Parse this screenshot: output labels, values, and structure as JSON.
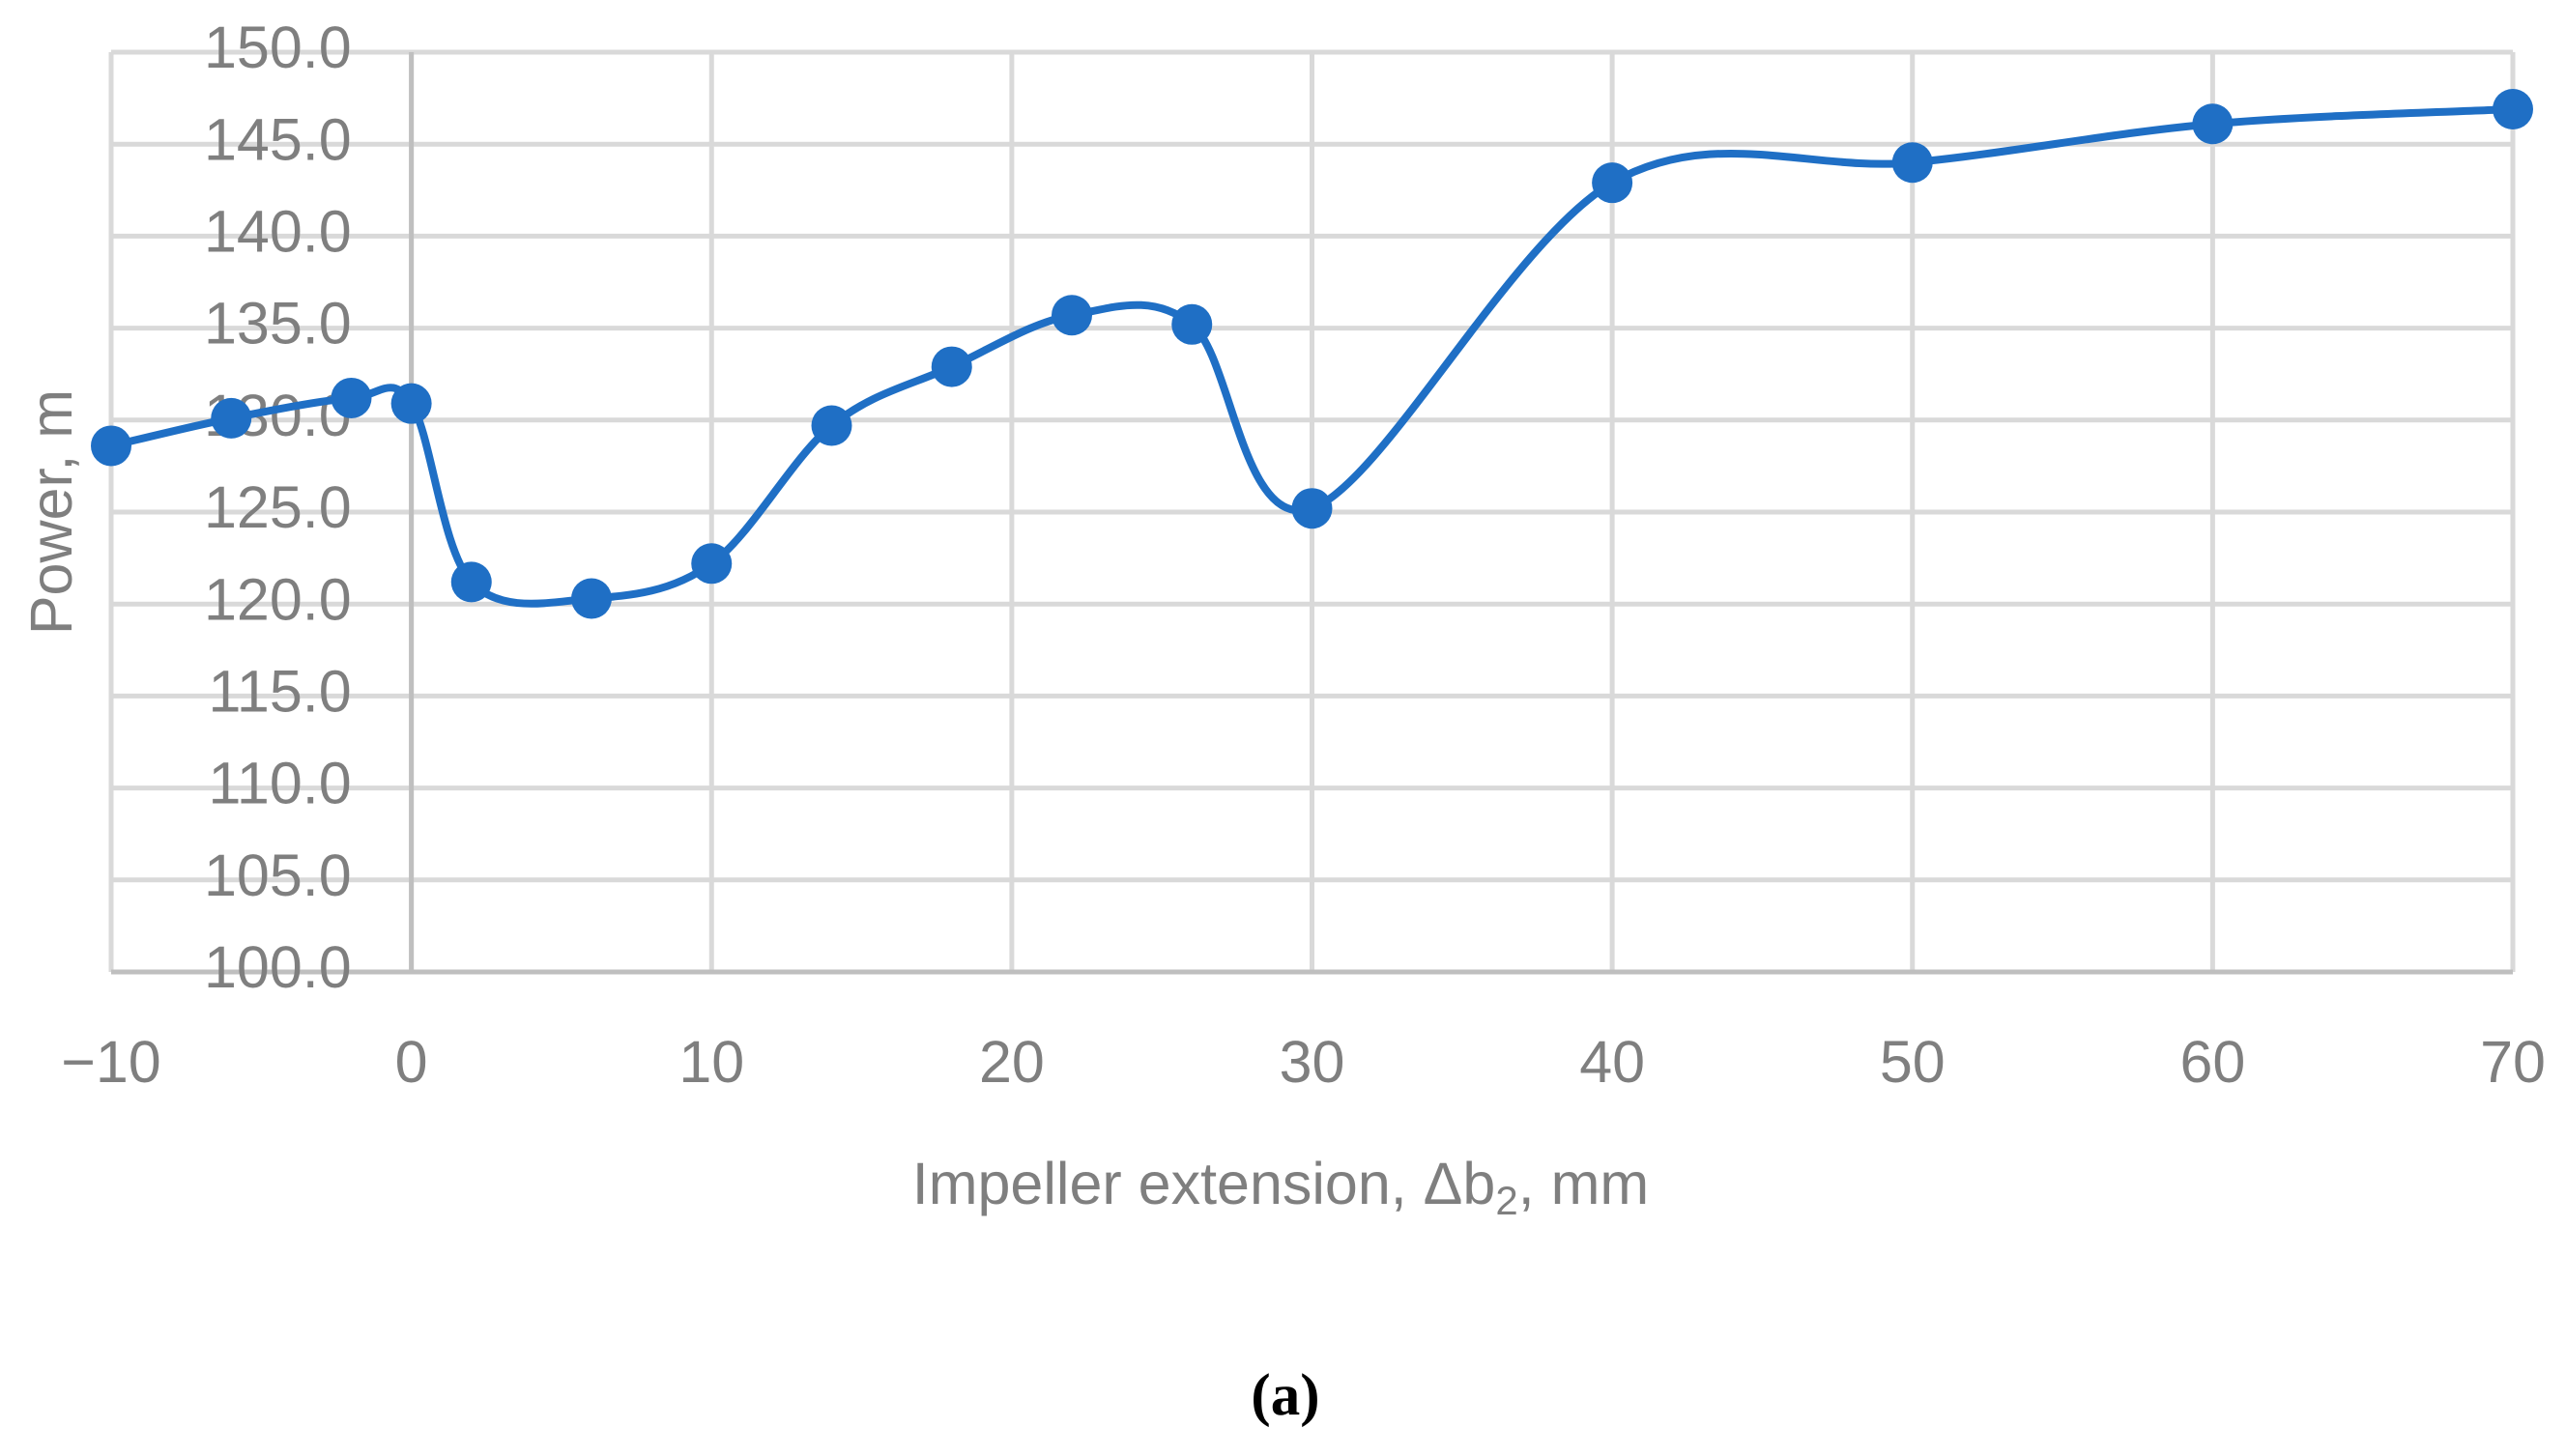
{
  "chart_data": {
    "type": "line",
    "y_label": "Power, m",
    "x_label_parts": [
      "Impeller extension, Δb",
      "2",
      ", mm"
    ],
    "caption": "(a)",
    "x": [
      -10,
      -6,
      -2,
      0,
      2,
      6,
      10,
      14,
      18,
      22,
      26,
      30,
      40,
      50,
      60,
      70
    ],
    "series": [
      {
        "color": "#1f6fc5",
        "values": [
          128.6,
          130.1,
          131.2,
          130.9,
          121.2,
          120.3,
          122.2,
          129.7,
          132.9,
          135.7,
          135.2,
          125.2,
          142.9,
          144.0,
          146.1,
          146.9
        ]
      }
    ],
    "xlim": [
      -10,
      70
    ],
    "xticks": [
      {
        "value": -10,
        "label": "−10"
      },
      0,
      10,
      20,
      30,
      40,
      50,
      60,
      70
    ],
    "ylim": [
      100,
      150
    ],
    "yticks": [
      {
        "value": 100,
        "label": "100.0"
      },
      {
        "value": 105,
        "label": "105.0"
      },
      {
        "value": 110,
        "label": "110.0"
      },
      {
        "value": 115,
        "label": "115.0"
      },
      {
        "value": 120,
        "label": "120.0"
      },
      {
        "value": 125,
        "label": "125.0"
      },
      {
        "value": 130,
        "label": "130.0"
      },
      {
        "value": 135,
        "label": "135.0"
      },
      {
        "value": 140,
        "label": "140.0"
      },
      {
        "value": 145,
        "label": "145.0"
      },
      {
        "value": 150,
        "label": "150.0"
      }
    ],
    "grid": true,
    "smooth": true
  }
}
